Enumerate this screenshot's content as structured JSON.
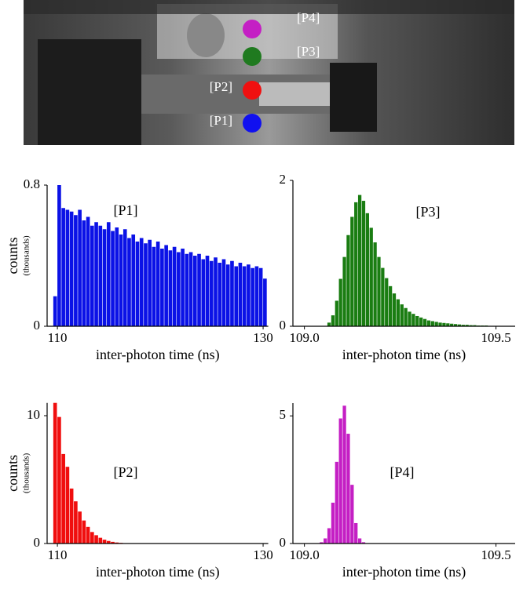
{
  "image": {
    "markers": [
      {
        "label": "[P4]",
        "color": "#c41fc4"
      },
      {
        "label": "[P3]",
        "color": "#1f7a1f"
      },
      {
        "label": "[P2]",
        "color": "#f01010"
      },
      {
        "label": "[P1]",
        "color": "#1010f0"
      }
    ]
  },
  "chart_data": [
    {
      "type": "histogram",
      "annotation": "[P1]",
      "xlabel": "inter-photon time (ns)",
      "ylabel": "counts",
      "ylabel_note": "(thousands)",
      "color": "#0b12e6",
      "bins": [
        109.6,
        110,
        110.4,
        110.8,
        111.2,
        111.6,
        112,
        112.4,
        112.8,
        113.2,
        113.6,
        114,
        114.4,
        114.8,
        115.2,
        115.6,
        116,
        116.4,
        116.8,
        117.2,
        117.6,
        118,
        118.4,
        118.8,
        119.2,
        119.6,
        120,
        120.4,
        120.8,
        121.2,
        121.6,
        122,
        122.4,
        122.8,
        123.2,
        123.6,
        124,
        124.4,
        124.8,
        125.2,
        125.6,
        126,
        126.4,
        126.8,
        127.2,
        127.6,
        128,
        128.4,
        128.8,
        129.2,
        129.6,
        130,
        130.4
      ],
      "values": [
        0.17,
        0.8,
        0.67,
        0.66,
        0.65,
        0.63,
        0.66,
        0.6,
        0.62,
        0.57,
        0.59,
        0.57,
        0.55,
        0.59,
        0.54,
        0.56,
        0.52,
        0.55,
        0.5,
        0.52,
        0.48,
        0.5,
        0.47,
        0.49,
        0.45,
        0.48,
        0.44,
        0.46,
        0.43,
        0.45,
        0.42,
        0.44,
        0.41,
        0.42,
        0.4,
        0.41,
        0.38,
        0.4,
        0.37,
        0.39,
        0.36,
        0.38,
        0.35,
        0.37,
        0.34,
        0.36,
        0.34,
        0.35,
        0.33,
        0.34,
        0.33,
        0.27
      ],
      "xlim": [
        109,
        130.5
      ],
      "ylim": [
        0,
        0.8
      ],
      "xticks": [
        110,
        130
      ],
      "yticks": [
        0,
        0.8
      ]
    },
    {
      "type": "histogram",
      "annotation": "[P3]",
      "xlabel": "inter-photon time (ns)",
      "color": "#1a7d12",
      "bins": [
        109.06,
        109.07,
        109.08,
        109.09,
        109.1,
        109.11,
        109.12,
        109.13,
        109.14,
        109.15,
        109.16,
        109.17,
        109.18,
        109.19,
        109.2,
        109.21,
        109.22,
        109.23,
        109.24,
        109.25,
        109.26,
        109.27,
        109.28,
        109.29,
        109.3,
        109.31,
        109.32,
        109.33,
        109.34,
        109.35,
        109.36,
        109.37,
        109.38,
        109.39,
        109.4,
        109.41,
        109.42,
        109.43,
        109.44,
        109.45,
        109.46,
        109.47,
        109.48,
        109.49,
        109.5,
        109.51,
        109.52
      ],
      "values": [
        0.05,
        0.15,
        0.35,
        0.65,
        0.95,
        1.25,
        1.5,
        1.7,
        1.8,
        1.72,
        1.55,
        1.35,
        1.15,
        0.95,
        0.8,
        0.66,
        0.55,
        0.45,
        0.37,
        0.3,
        0.25,
        0.2,
        0.17,
        0.14,
        0.12,
        0.1,
        0.08,
        0.07,
        0.06,
        0.05,
        0.045,
        0.04,
        0.035,
        0.03,
        0.025,
        0.02,
        0.02,
        0.015,
        0.015,
        0.01,
        0.01,
        0.01,
        0.005,
        0.005,
        0.005,
        0.005
      ],
      "xlim": [
        108.97,
        109.55
      ],
      "ylim": [
        0,
        2
      ],
      "xticks": [
        {
          "value": 109,
          "label": "109.0"
        },
        109.5
      ],
      "yticks": [
        0,
        2
      ]
    },
    {
      "type": "histogram",
      "annotation": "[P2]",
      "xlabel": "inter-photon time (ns)",
      "ylabel": "counts",
      "ylabel_note": "(thousands)",
      "color": "#f00e0e",
      "bins": [
        109.6,
        110,
        110.4,
        110.8,
        111.2,
        111.6,
        112,
        112.4,
        112.8,
        113.2,
        113.6,
        114,
        114.4,
        114.8,
        115.2,
        115.6,
        116,
        116.4,
        116.8,
        117.2,
        117.6
      ],
      "values": [
        11.0,
        9.9,
        7.0,
        6.0,
        4.3,
        3.3,
        2.5,
        1.8,
        1.3,
        0.9,
        0.65,
        0.45,
        0.3,
        0.2,
        0.13,
        0.08,
        0.05,
        0.03,
        0.02,
        0.01
      ],
      "xlim": [
        109,
        130.5
      ],
      "ylim": [
        0,
        11
      ],
      "xticks": [
        110,
        130
      ],
      "yticks": [
        0,
        10
      ]
    },
    {
      "type": "histogram",
      "annotation": "[P4]",
      "xlabel": "inter-photon time (ns)",
      "color": "#c41fc4",
      "bins": [
        109.04,
        109.05,
        109.06,
        109.07,
        109.08,
        109.09,
        109.1,
        109.11,
        109.12,
        109.13,
        109.14,
        109.15,
        109.16
      ],
      "values": [
        0.05,
        0.2,
        0.6,
        1.6,
        3.2,
        4.9,
        5.4,
        4.3,
        2.3,
        0.8,
        0.2,
        0.05
      ],
      "xlim": [
        108.97,
        109.55
      ],
      "ylim": [
        0,
        5.5
      ],
      "xticks": [
        {
          "value": 109,
          "label": "109.0"
        },
        109.5
      ],
      "yticks": [
        0,
        5
      ]
    }
  ]
}
